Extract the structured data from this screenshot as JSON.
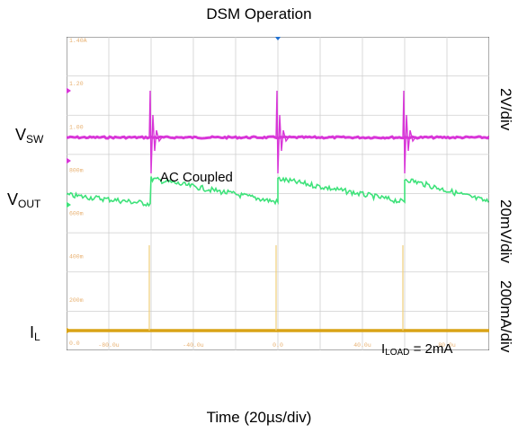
{
  "chart_data": {
    "type": "line",
    "title": "DSM Operation",
    "xlabel": "Time (20µs/div)",
    "x_tick_labels": [
      "-80.0u",
      "-40.0u",
      "0.0",
      "40.0u",
      "80.0u"
    ],
    "y_tick_labels": [
      "1.40A",
      "1.20",
      "1.00",
      "800m",
      "600m",
      "400m",
      "200m",
      "0.0"
    ],
    "grid": true,
    "channels": [
      {
        "name": "V",
        "sub": "SW",
        "scale": "2V/div",
        "color": "#d836d8",
        "description_values": {
          "pulse_times_us": [
            -60,
            0,
            60
          ]
        }
      },
      {
        "name": "V",
        "sub": "OUT",
        "scale": "20mV/div",
        "color": "#3ee27a",
        "description_values": {
          "pulse_times_us": [
            -60,
            0,
            60
          ]
        }
      },
      {
        "name": "I",
        "sub": "L",
        "scale": "200mA/div",
        "color": "#d9a316",
        "description_values": {
          "pulse_times_us": [
            -60,
            0,
            60
          ]
        }
      }
    ],
    "annotations": {
      "ac_coupled": "AC Coupled",
      "iload_prefix": "I",
      "iload_sub": "LOAD",
      "iload_suffix": " = 2mA"
    }
  }
}
